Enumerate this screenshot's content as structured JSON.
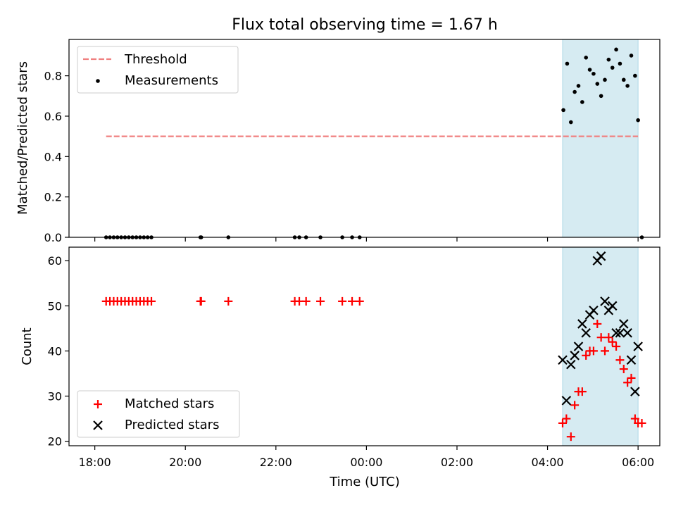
{
  "chart_data": [
    {
      "type": "scatter",
      "title": "Flux total observing time = 1.67 h",
      "xlabel": "",
      "ylabel": "Matched/Predicted stars",
      "ylim": [
        0,
        0.98
      ],
      "yticks": [
        0.0,
        0.2,
        0.4,
        0.6,
        0.8
      ],
      "ytick_labels": [
        "0.0",
        "0.2",
        "0.4",
        "0.6",
        "0.8"
      ],
      "x_unit": "hours after 18:00 UTC",
      "xlim": [
        -0.57,
        12.48
      ],
      "shaded_region": {
        "start": "04:20",
        "end": "06:00",
        "color": "#add8e6"
      },
      "legend": {
        "placement": "upper-left",
        "entries": [
          "Threshold",
          "Measurements"
        ]
      },
      "threshold": {
        "name": "Threshold",
        "value": 0.5,
        "x_range": [
          "18:15",
          "06:00"
        ],
        "color": "#f08080",
        "style": "dashed"
      },
      "series": [
        {
          "name": "Measurements",
          "marker": "dot",
          "color": "#000000",
          "x": [
            "18:15",
            "18:20",
            "18:25",
            "18:30",
            "18:35",
            "18:40",
            "18:45",
            "18:50",
            "18:55",
            "19:00",
            "19:05",
            "19:10",
            "19:15",
            "20:20",
            "20:21",
            "20:57",
            "22:25",
            "22:31",
            "22:40",
            "22:59",
            "23:28",
            "23:41",
            "23:51",
            "04:21",
            "04:26",
            "04:31",
            "04:36",
            "04:41",
            "04:46",
            "04:51",
            "04:56",
            "05:01",
            "05:06",
            "05:11",
            "05:16",
            "05:21",
            "05:26",
            "05:31",
            "05:36",
            "05:41",
            "05:46",
            "05:51",
            "05:56",
            "06:00",
            "06:05"
          ],
          "y": [
            0,
            0,
            0,
            0,
            0,
            0,
            0,
            0,
            0,
            0,
            0,
            0,
            0,
            0,
            0,
            0,
            0,
            0,
            0,
            0,
            0,
            0,
            0,
            0.63,
            0.86,
            0.57,
            0.72,
            0.75,
            0.67,
            0.89,
            0.83,
            0.81,
            0.76,
            0.7,
            0.78,
            0.88,
            0.84,
            0.93,
            0.86,
            0.78,
            0.75,
            0.9,
            0.8,
            0.58,
            0
          ]
        }
      ]
    },
    {
      "type": "scatter",
      "title": "",
      "xlabel": "Time (UTC)",
      "ylabel": "Count",
      "ylim": [
        19,
        63
      ],
      "yticks": [
        20,
        30,
        40,
        50,
        60
      ],
      "ytick_labels": [
        "20",
        "30",
        "40",
        "50",
        "60"
      ],
      "x_unit": "hours after 18:00 UTC",
      "xlim": [
        -0.57,
        12.48
      ],
      "xticks": [
        "18:00",
        "20:00",
        "22:00",
        "00:00",
        "02:00",
        "04:00",
        "06:00"
      ],
      "shaded_region": {
        "start": "04:20",
        "end": "06:00",
        "color": "#add8e6"
      },
      "legend": {
        "placement": "lower-left",
        "entries": [
          "Matched stars",
          "Predicted stars"
        ]
      },
      "series": [
        {
          "name": "Matched stars",
          "marker": "plus",
          "color": "#ff0000",
          "x": [
            "18:15",
            "18:20",
            "18:25",
            "18:30",
            "18:35",
            "18:40",
            "18:45",
            "18:50",
            "18:55",
            "19:00",
            "19:05",
            "19:10",
            "19:15",
            "20:20",
            "20:21",
            "20:57",
            "22:25",
            "22:31",
            "22:40",
            "22:59",
            "23:28",
            "23:41",
            "23:51",
            "04:20",
            "04:25",
            "04:31",
            "04:36",
            "04:41",
            "04:46",
            "04:51",
            "04:56",
            "05:01",
            "05:06",
            "05:11",
            "05:16",
            "05:21",
            "05:26",
            "05:31",
            "05:36",
            "05:41",
            "05:46",
            "05:51",
            "05:56",
            "06:00",
            "06:05"
          ],
          "y": [
            51,
            51,
            51,
            51,
            51,
            51,
            51,
            51,
            51,
            51,
            51,
            51,
            51,
            51,
            51,
            51,
            51,
            51,
            51,
            51,
            51,
            51,
            51,
            24,
            25,
            21,
            28,
            31,
            31,
            39,
            40,
            40,
            46,
            43,
            40,
            43,
            42,
            41,
            38,
            36,
            33,
            34,
            25,
            24,
            24
          ]
        },
        {
          "name": "Predicted stars",
          "marker": "x",
          "color": "#000000",
          "x": [
            "04:20",
            "04:25",
            "04:31",
            "04:36",
            "04:41",
            "04:46",
            "04:51",
            "04:56",
            "05:01",
            "05:06",
            "05:11",
            "05:16",
            "05:21",
            "05:26",
            "05:31",
            "05:36",
            "05:41",
            "05:46",
            "05:51",
            "05:56",
            "06:00"
          ],
          "y": [
            38,
            29,
            37,
            39,
            41,
            46,
            44,
            48,
            49,
            60,
            61,
            51,
            49,
            50,
            44,
            44,
            46,
            44,
            38,
            31,
            41
          ]
        }
      ]
    }
  ]
}
